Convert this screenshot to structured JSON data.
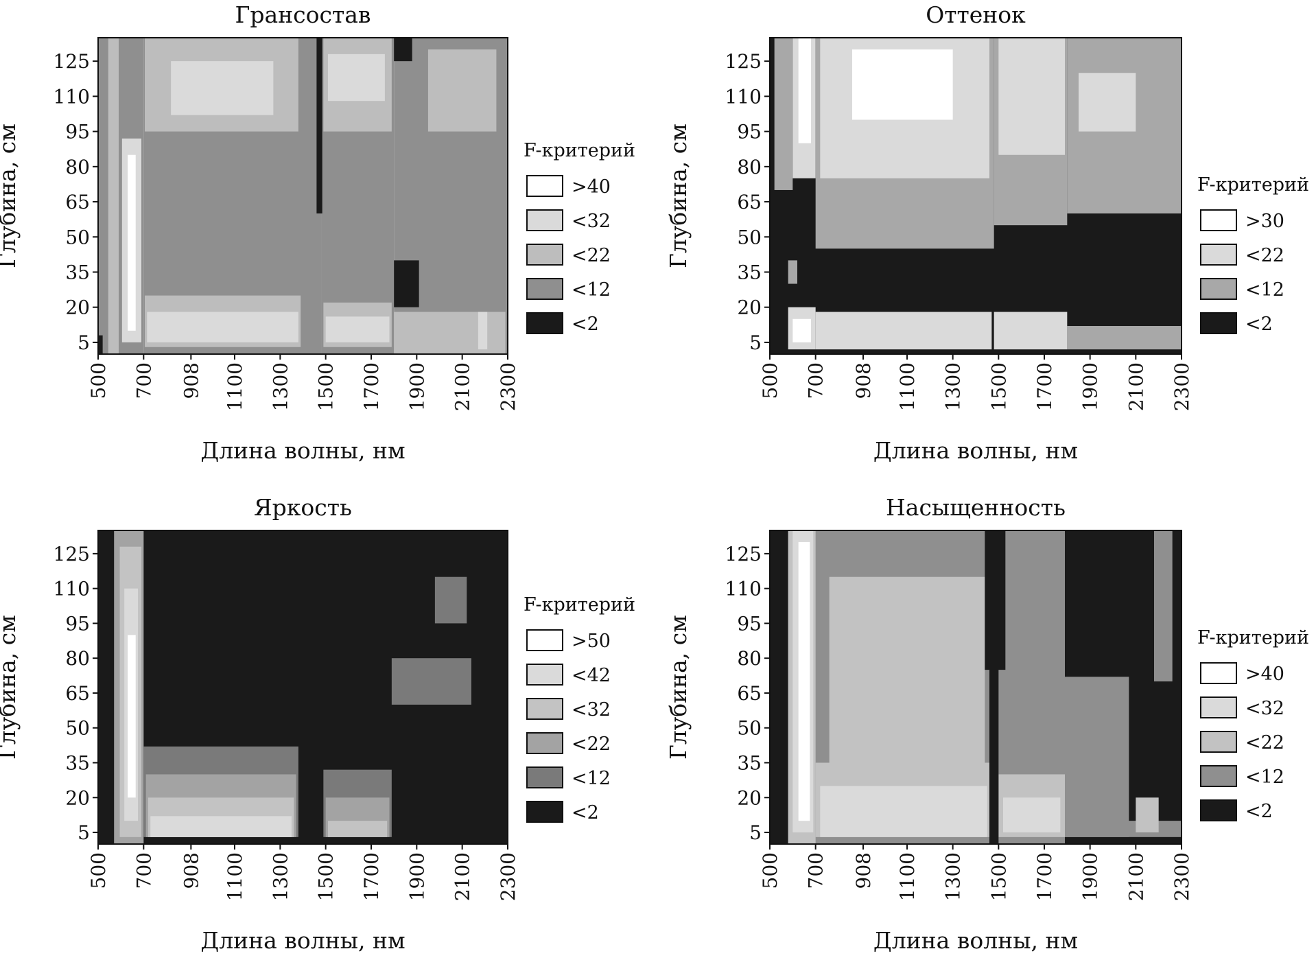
{
  "chart_data": [
    {
      "type": "heatmap",
      "title": "Грансостав",
      "xlabel": "Длина волны, нм",
      "ylabel": "Глубина, см",
      "xticks": [
        "500",
        "700",
        "908",
        "1100",
        "1300",
        "1500",
        "1700",
        "1900",
        "2100",
        "2300"
      ],
      "yticks": [
        "5",
        "20",
        "35",
        "50",
        "65",
        "80",
        "95",
        "110",
        "125"
      ],
      "xlim": [
        500,
        2300
      ],
      "ylim": [
        0,
        135
      ],
      "legend_title": "F-критерий",
      "legend_placement": "right",
      "legend": [
        {
          "label": ">40",
          "color": "#ffffff"
        },
        {
          "label": "<32",
          "color": "#dadada"
        },
        {
          "label": "<22",
          "color": "#bdbdbd"
        },
        {
          "label": "<12",
          "color": "#8f8f8f"
        },
        {
          "label": "<2",
          "color": "#1a1a1a"
        }
      ],
      "regions": [
        {
          "x": [
            500,
            545
          ],
          "y": [
            0,
            135
          ],
          "level": 3
        },
        {
          "x": [
            545,
            590
          ],
          "y": [
            0,
            135
          ],
          "level": 2
        },
        {
          "x": [
            590,
            700
          ],
          "y": [
            0,
            135
          ],
          "level": 3
        },
        {
          "x": [
            605,
            690
          ],
          "y": [
            5,
            92
          ],
          "level": 1
        },
        {
          "x": [
            630,
            665
          ],
          "y": [
            10,
            85
          ],
          "level": 0
        },
        {
          "x": [
            700,
            1480
          ],
          "y": [
            0,
            135
          ],
          "level": 3
        },
        {
          "x": [
            705,
            1380
          ],
          "y": [
            95,
            135
          ],
          "level": 2
        },
        {
          "x": [
            820,
            1270
          ],
          "y": [
            102,
            125
          ],
          "level": 1
        },
        {
          "x": [
            705,
            1390
          ],
          "y": [
            3,
            25
          ],
          "level": 2
        },
        {
          "x": [
            715,
            1380
          ],
          "y": [
            5,
            18
          ],
          "level": 1
        },
        {
          "x": [
            1480,
            1800
          ],
          "y": [
            0,
            135
          ],
          "level": 3
        },
        {
          "x": [
            1490,
            1790
          ],
          "y": [
            95,
            135
          ],
          "level": 2
        },
        {
          "x": [
            1510,
            1760
          ],
          "y": [
            108,
            128
          ],
          "level": 1
        },
        {
          "x": [
            1490,
            1790
          ],
          "y": [
            3,
            22
          ],
          "level": 2
        },
        {
          "x": [
            1500,
            1780
          ],
          "y": [
            5,
            16
          ],
          "level": 1
        },
        {
          "x": [
            1800,
            2300
          ],
          "y": [
            0,
            135
          ],
          "level": 3
        },
        {
          "x": [
            1950,
            2250
          ],
          "y": [
            95,
            130
          ],
          "level": 2
        },
        {
          "x": [
            1800,
            1910
          ],
          "y": [
            20,
            40
          ],
          "level": 4
        },
        {
          "x": [
            1800,
            1880
          ],
          "y": [
            125,
            135
          ],
          "level": 4
        },
        {
          "x": [
            1800,
            2290
          ],
          "y": [
            0,
            18
          ],
          "level": 2
        },
        {
          "x": [
            2170,
            2210
          ],
          "y": [
            2,
            18
          ],
          "level": 1
        },
        {
          "x": [
            1460,
            1485
          ],
          "y": [
            60,
            135
          ],
          "level": 4
        },
        {
          "x": [
            500,
            520
          ],
          "y": [
            0,
            8
          ],
          "level": 4
        }
      ]
    },
    {
      "type": "heatmap",
      "title": "Оттенок",
      "xlabel": "Длина волны, нм",
      "ylabel": "Глубина, см",
      "xticks": [
        "500",
        "700",
        "908",
        "1100",
        "1300",
        "1500",
        "1700",
        "1900",
        "2100",
        "2300"
      ],
      "yticks": [
        "5",
        "20",
        "35",
        "50",
        "65",
        "80",
        "95",
        "110",
        "125"
      ],
      "xlim": [
        500,
        2300
      ],
      "ylim": [
        0,
        135
      ],
      "legend_title": "F-критерий",
      "legend_placement": "right",
      "legend": [
        {
          "label": ">30",
          "color": "#ffffff"
        },
        {
          "label": "<22",
          "color": "#dadada"
        },
        {
          "label": "<12",
          "color": "#a8a8a8"
        },
        {
          "label": "<2",
          "color": "#1a1a1a"
        }
      ],
      "regions": [
        {
          "x": [
            500,
            2300
          ],
          "y": [
            0,
            135
          ],
          "level": 3
        },
        {
          "x": [
            520,
            600
          ],
          "y": [
            70,
            135
          ],
          "level": 2
        },
        {
          "x": [
            600,
            700
          ],
          "y": [
            75,
            135
          ],
          "level": 1
        },
        {
          "x": [
            625,
            680
          ],
          "y": [
            90,
            135
          ],
          "level": 0
        },
        {
          "x": [
            700,
            1480
          ],
          "y": [
            45,
            135
          ],
          "level": 2
        },
        {
          "x": [
            720,
            1460
          ],
          "y": [
            75,
            135
          ],
          "level": 1
        },
        {
          "x": [
            860,
            1300
          ],
          "y": [
            100,
            130
          ],
          "level": 0
        },
        {
          "x": [
            1480,
            1800
          ],
          "y": [
            55,
            135
          ],
          "level": 2
        },
        {
          "x": [
            1500,
            1790
          ],
          "y": [
            85,
            135
          ],
          "level": 1
        },
        {
          "x": [
            1800,
            2300
          ],
          "y": [
            60,
            135
          ],
          "level": 2
        },
        {
          "x": [
            1850,
            2100
          ],
          "y": [
            95,
            120
          ],
          "level": 1
        },
        {
          "x": [
            1800,
            2300
          ],
          "y": [
            2,
            12
          ],
          "level": 2
        },
        {
          "x": [
            580,
            700
          ],
          "y": [
            2,
            20
          ],
          "level": 1
        },
        {
          "x": [
            600,
            680
          ],
          "y": [
            5,
            15
          ],
          "level": 0
        },
        {
          "x": [
            700,
            1470
          ],
          "y": [
            2,
            18
          ],
          "level": 1
        },
        {
          "x": [
            1480,
            1800
          ],
          "y": [
            2,
            18
          ],
          "level": 1
        },
        {
          "x": [
            580,
            620
          ],
          "y": [
            30,
            40
          ],
          "level": 2
        }
      ]
    },
    {
      "type": "heatmap",
      "title": "Яркость",
      "xlabel": "Длина волны, нм",
      "ylabel": "Глубина, см",
      "xticks": [
        "500",
        "700",
        "908",
        "1100",
        "1300",
        "1500",
        "1700",
        "1900",
        "2100",
        "2300"
      ],
      "yticks": [
        "5",
        "20",
        "35",
        "50",
        "65",
        "80",
        "95",
        "110",
        "125"
      ],
      "xlim": [
        500,
        2300
      ],
      "ylim": [
        0,
        135
      ],
      "legend_title": "F-критерий",
      "legend_placement": "right",
      "legend": [
        {
          "label": ">50",
          "color": "#ffffff"
        },
        {
          "label": "<42",
          "color": "#dadada"
        },
        {
          "label": "<32",
          "color": "#c3c3c3"
        },
        {
          "label": "<22",
          "color": "#a3a3a3"
        },
        {
          "label": "<12",
          "color": "#7a7a7a"
        },
        {
          "label": "<2",
          "color": "#1a1a1a"
        }
      ],
      "regions": [
        {
          "x": [
            500,
            2300
          ],
          "y": [
            0,
            135
          ],
          "level": 5
        },
        {
          "x": [
            570,
            700
          ],
          "y": [
            0,
            135
          ],
          "level": 3
        },
        {
          "x": [
            595,
            690
          ],
          "y": [
            3,
            128
          ],
          "level": 2
        },
        {
          "x": [
            615,
            675
          ],
          "y": [
            10,
            110
          ],
          "level": 1
        },
        {
          "x": [
            630,
            665
          ],
          "y": [
            20,
            90
          ],
          "level": 0
        },
        {
          "x": [
            700,
            1380
          ],
          "y": [
            3,
            42
          ],
          "level": 4
        },
        {
          "x": [
            710,
            1370
          ],
          "y": [
            3,
            30
          ],
          "level": 3
        },
        {
          "x": [
            720,
            1360
          ],
          "y": [
            3,
            20
          ],
          "level": 2
        },
        {
          "x": [
            730,
            1350
          ],
          "y": [
            3,
            12
          ],
          "level": 1
        },
        {
          "x": [
            1490,
            1790
          ],
          "y": [
            3,
            32
          ],
          "level": 4
        },
        {
          "x": [
            1500,
            1780
          ],
          "y": [
            3,
            20
          ],
          "level": 3
        },
        {
          "x": [
            1510,
            1770
          ],
          "y": [
            3,
            10
          ],
          "level": 2
        },
        {
          "x": [
            1790,
            2140
          ],
          "y": [
            60,
            80
          ],
          "level": 4
        },
        {
          "x": [
            1980,
            2120
          ],
          "y": [
            95,
            115
          ],
          "level": 4
        }
      ]
    },
    {
      "type": "heatmap",
      "title": "Насыщенность",
      "xlabel": "Длина волны, нм",
      "ylabel": "Глубина, см",
      "xticks": [
        "500",
        "700",
        "908",
        "1100",
        "1300",
        "1500",
        "1700",
        "1900",
        "2100",
        "2300"
      ],
      "yticks": [
        "5",
        "20",
        "35",
        "50",
        "65",
        "80",
        "95",
        "110",
        "125"
      ],
      "xlim": [
        500,
        2300
      ],
      "ylim": [
        0,
        135
      ],
      "legend_title": "F-критерий",
      "legend_placement": "right",
      "legend": [
        {
          "label": ">40",
          "color": "#ffffff"
        },
        {
          "label": "<32",
          "color": "#dadada"
        },
        {
          "label": "<22",
          "color": "#c2c2c2"
        },
        {
          "label": "<12",
          "color": "#8f8f8f"
        },
        {
          "label": "<2",
          "color": "#1a1a1a"
        }
      ],
      "regions": [
        {
          "x": [
            500,
            2300
          ],
          "y": [
            0,
            135
          ],
          "level": 3
        },
        {
          "x": [
            500,
            580
          ],
          "y": [
            0,
            135
          ],
          "level": 4
        },
        {
          "x": [
            580,
            700
          ],
          "y": [
            0,
            135
          ],
          "level": 2
        },
        {
          "x": [
            600,
            690
          ],
          "y": [
            5,
            135
          ],
          "level": 1
        },
        {
          "x": [
            625,
            675
          ],
          "y": [
            10,
            130
          ],
          "level": 0
        },
        {
          "x": [
            760,
            1440
          ],
          "y": [
            30,
            115
          ],
          "level": 2
        },
        {
          "x": [
            700,
            1470
          ],
          "y": [
            3,
            35
          ],
          "level": 2
        },
        {
          "x": [
            720,
            1450
          ],
          "y": [
            3,
            25
          ],
          "level": 1
        },
        {
          "x": [
            1010,
            1200
          ],
          "y": [
            60,
            80
          ],
          "level": 2
        },
        {
          "x": [
            1440,
            1530
          ],
          "y": [
            75,
            135
          ],
          "level": 4
        },
        {
          "x": [
            1500,
            1790
          ],
          "y": [
            3,
            30
          ],
          "level": 2
        },
        {
          "x": [
            1520,
            1770
          ],
          "y": [
            5,
            20
          ],
          "level": 1
        },
        {
          "x": [
            1790,
            2300
          ],
          "y": [
            0,
            135
          ],
          "level": 4
        },
        {
          "x": [
            1790,
            2070
          ],
          "y": [
            3,
            72
          ],
          "level": 3
        },
        {
          "x": [
            1790,
            2300
          ],
          "y": [
            3,
            10
          ],
          "level": 3
        },
        {
          "x": [
            2100,
            2200
          ],
          "y": [
            5,
            20
          ],
          "level": 2
        },
        {
          "x": [
            2180,
            2260
          ],
          "y": [
            70,
            135
          ],
          "level": 3
        },
        {
          "x": [
            1460,
            1500
          ],
          "y": [
            0,
            135
          ],
          "level": 4
        }
      ]
    }
  ]
}
